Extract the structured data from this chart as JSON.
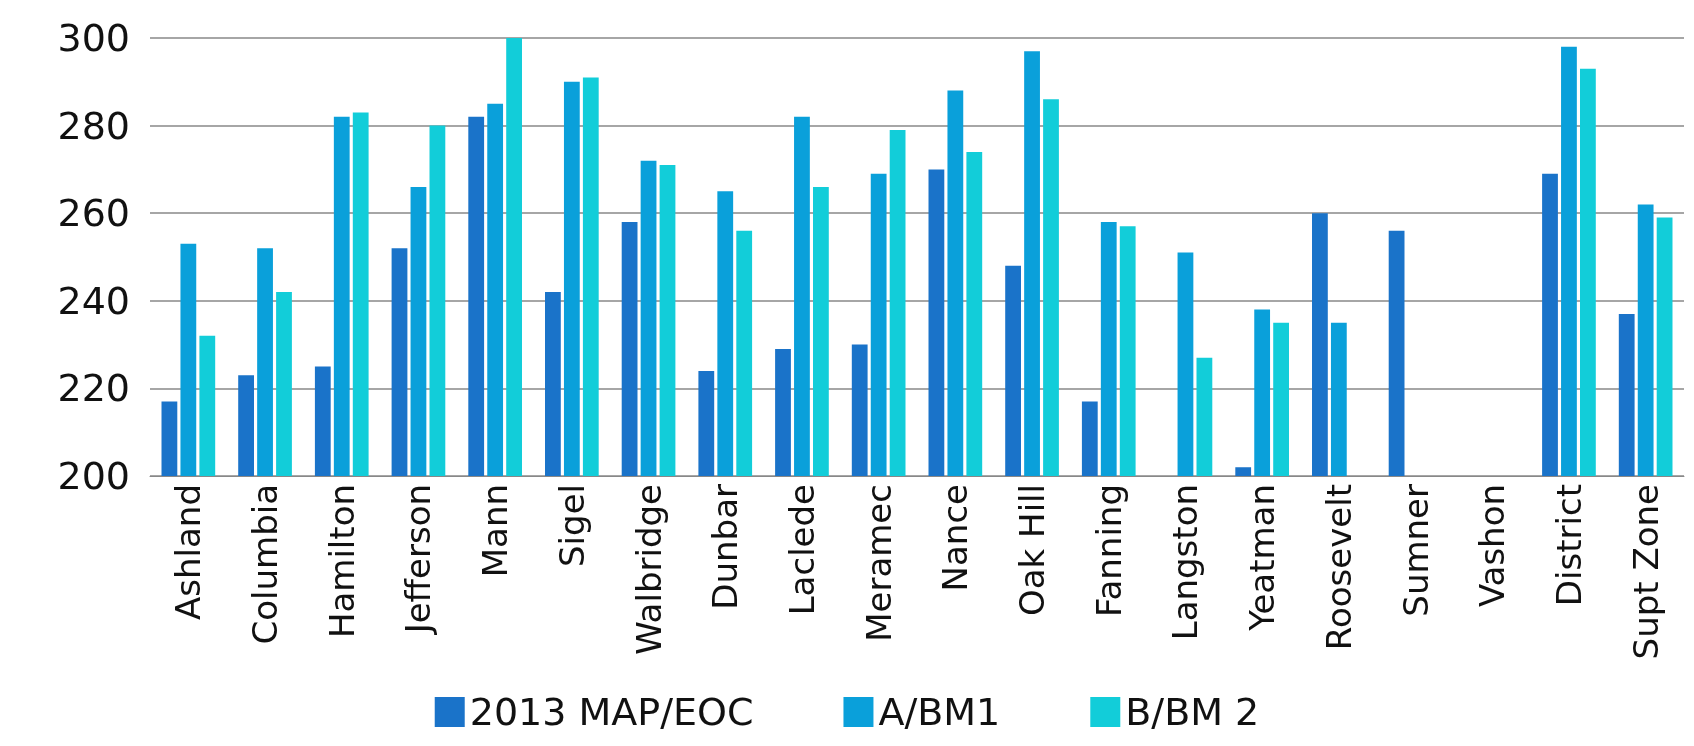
{
  "chart_data": {
    "type": "bar",
    "categories": [
      "Ashland",
      "Columbia",
      "Hamilton",
      "Jefferson",
      "Mann",
      "Sigel",
      "Walbridge",
      "Dunbar",
      "Laclede",
      "Meramec",
      "Nance",
      "Oak Hill",
      "Fanning",
      "Langston",
      "Yeatman",
      "Roosevelt",
      "Sumner",
      "Vashon",
      "District",
      "Supt Zone"
    ],
    "series": [
      {
        "name": "2013 MAP/EOC",
        "color": "#1a73c9",
        "values": [
          217,
          223,
          225,
          252,
          282,
          242,
          258,
          224,
          229,
          230,
          270,
          248,
          217,
          null,
          202,
          260,
          256,
          null,
          269,
          237
        ]
      },
      {
        "name": "A/BM1",
        "color": "#0aa0da",
        "values": [
          253,
          252,
          282,
          266,
          285,
          290,
          272,
          265,
          282,
          269,
          288,
          297,
          258,
          251,
          238,
          235,
          null,
          null,
          298,
          262
        ]
      },
      {
        "name": "B/BM 2",
        "color": "#12cdd9",
        "values": [
          232,
          242,
          283,
          280,
          300,
          291,
          271,
          256,
          266,
          279,
          274,
          286,
          257,
          227,
          235,
          null,
          null,
          null,
          293,
          259
        ]
      }
    ],
    "ylim": [
      200,
      300
    ],
    "yticks": [
      200,
      220,
      240,
      260,
      280,
      300
    ],
    "grid": "y",
    "legend": "bottom"
  }
}
